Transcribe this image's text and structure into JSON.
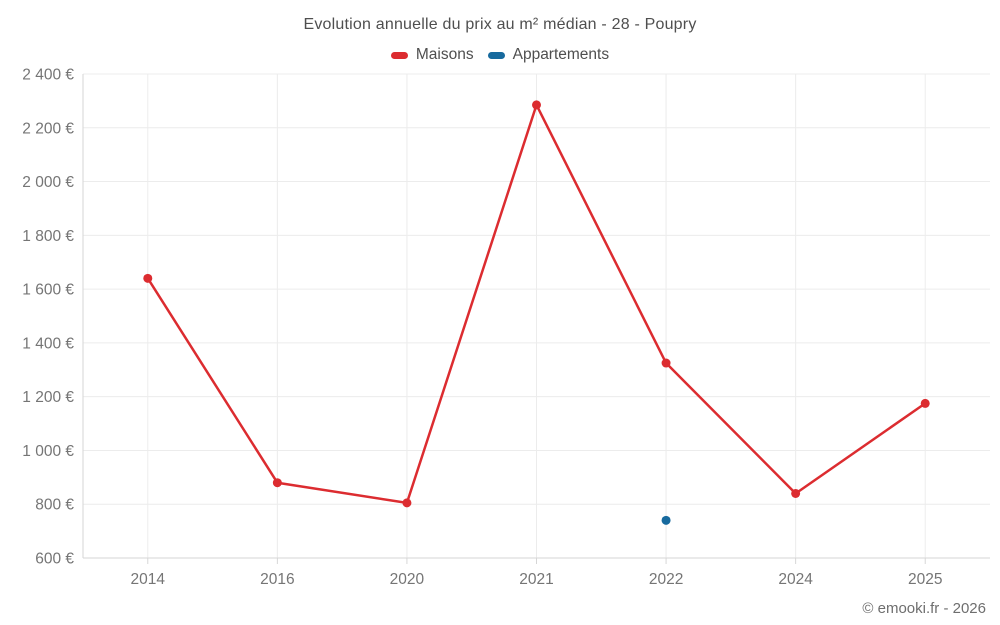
{
  "title": "Evolution annuelle du prix au m² médian - 28 - Poupry",
  "legend": [
    {
      "label": "Maisons",
      "color": "#dc2c30"
    },
    {
      "label": "Appartements",
      "color": "#176a9e"
    }
  ],
  "footer": "© emooki.fr - 2026",
  "colors": {
    "maisons": "#dc2c30",
    "appartements": "#176a9e",
    "grid": "#ececec",
    "axis": "#d6d6d6",
    "tick_label": "#757575"
  },
  "chart_data": {
    "type": "line",
    "title": "Evolution annuelle du prix au m² médian - 28 - Poupry",
    "categories": [
      "2014",
      "2016",
      "2020",
      "2021",
      "2022",
      "2024",
      "2025"
    ],
    "series": [
      {
        "name": "Maisons",
        "color": "#dc2c30",
        "values": [
          1640,
          880,
          805,
          2285,
          1325,
          840,
          1175
        ]
      },
      {
        "name": "Appartements",
        "color": "#176a9e",
        "values": [
          null,
          null,
          null,
          null,
          740,
          null,
          null
        ]
      }
    ],
    "xlabel": "",
    "ylabel": "",
    "ylim": [
      600,
      2400
    ],
    "ytick_step": 200,
    "ytick_labels": [
      "600 €",
      "800 €",
      "1 000 €",
      "1 200 €",
      "1 400 €",
      "1 600 €",
      "1 800 €",
      "2 000 €",
      "2 200 €",
      "2 400 €"
    ],
    "grid": true,
    "legend_position": "top"
  }
}
